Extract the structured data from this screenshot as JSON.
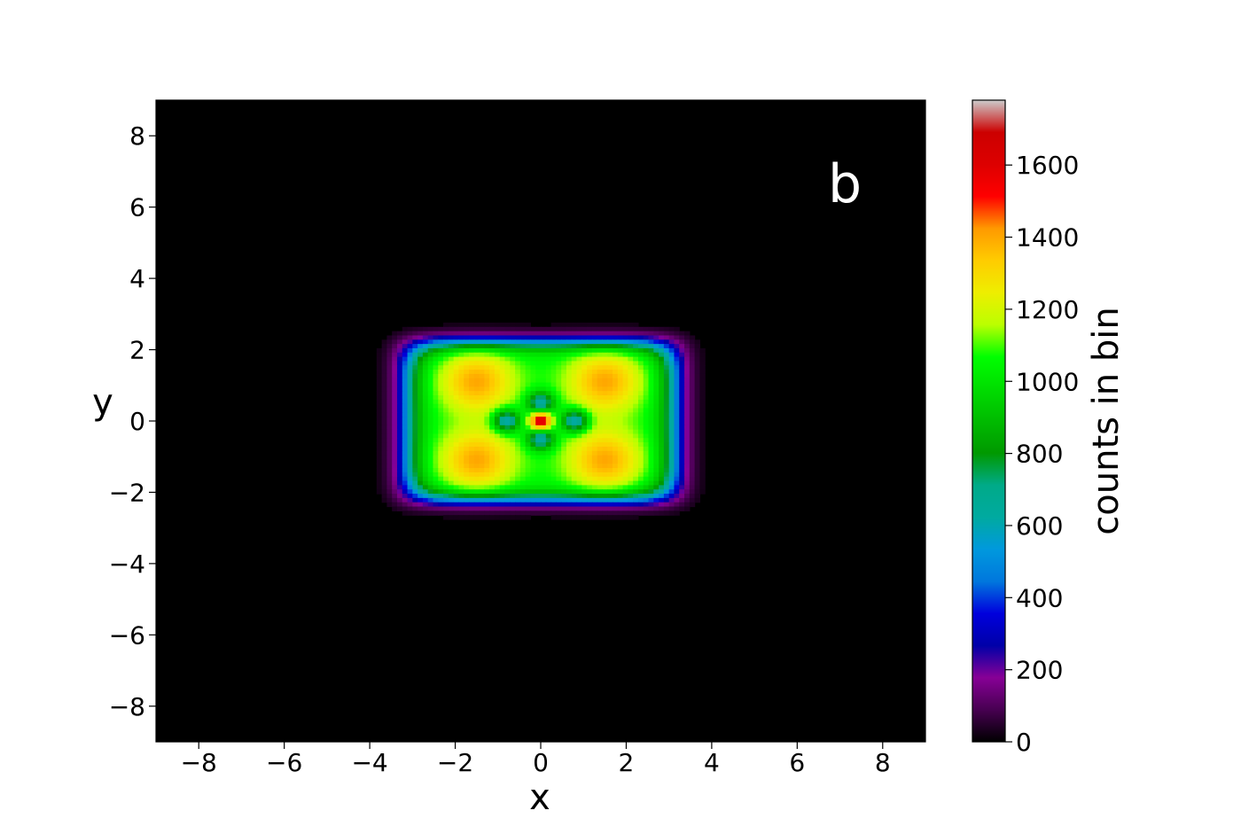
{
  "chart_data": {
    "type": "heatmap",
    "title": "",
    "panel_label": "b",
    "xlabel": "x",
    "ylabel": "y",
    "xlim": [
      -9,
      9
    ],
    "ylim": [
      -9,
      9
    ],
    "xticks": [
      -8,
      -6,
      -4,
      -2,
      0,
      2,
      4,
      6,
      8
    ],
    "yticks": [
      -8,
      -6,
      -4,
      -2,
      0,
      2,
      4,
      6,
      8
    ],
    "colorbar": {
      "label": "counts in bin",
      "range": [
        0,
        1780
      ],
      "ticks": [
        0,
        200,
        400,
        600,
        800,
        1000,
        1200,
        1400,
        1600
      ],
      "colormap": "nipy_spectral",
      "stops": [
        {
          "v": 0.0,
          "color": "#000000"
        },
        {
          "v": 0.05,
          "color": "#470051"
        },
        {
          "v": 0.1,
          "color": "#870096"
        },
        {
          "v": 0.15,
          "color": "#0000a8"
        },
        {
          "v": 0.2,
          "color": "#0000dd"
        },
        {
          "v": 0.25,
          "color": "#0077dd"
        },
        {
          "v": 0.3,
          "color": "#0099dd"
        },
        {
          "v": 0.35,
          "color": "#00aaa0"
        },
        {
          "v": 0.4,
          "color": "#00aa88"
        },
        {
          "v": 0.45,
          "color": "#009900"
        },
        {
          "v": 0.5,
          "color": "#00bb00"
        },
        {
          "v": 0.55,
          "color": "#00dd00"
        },
        {
          "v": 0.6,
          "color": "#00ff00"
        },
        {
          "v": 0.65,
          "color": "#bbff00"
        },
        {
          "v": 0.7,
          "color": "#eeee00"
        },
        {
          "v": 0.75,
          "color": "#ffcc00"
        },
        {
          "v": 0.8,
          "color": "#ff9900"
        },
        {
          "v": 0.85,
          "color": "#ff0000"
        },
        {
          "v": 0.9,
          "color": "#dd0000"
        },
        {
          "v": 0.95,
          "color": "#cc0000"
        },
        {
          "v": 1.0,
          "color": "#cccccc"
        }
      ]
    },
    "features": [
      {
        "name": "central-peak",
        "x": 0,
        "y": 0,
        "value": 1650
      },
      {
        "name": "corner-lobe",
        "x": -1.5,
        "y": 1.1,
        "value": 1400
      },
      {
        "name": "corner-lobe",
        "x": 1.5,
        "y": 1.1,
        "value": 1400
      },
      {
        "name": "corner-lobe",
        "x": -1.5,
        "y": -1.1,
        "value": 1400
      },
      {
        "name": "corner-lobe",
        "x": 1.5,
        "y": -1.1,
        "value": 1400
      },
      {
        "name": "inner-dip",
        "x": 0,
        "y": 0.5,
        "value": 600
      },
      {
        "name": "inner-dip",
        "x": 0,
        "y": -0.5,
        "value": 600
      },
      {
        "name": "inner-dip",
        "x": -0.8,
        "y": 0,
        "value": 600
      },
      {
        "name": "inner-dip",
        "x": 0.8,
        "y": 0,
        "value": 600
      },
      {
        "name": "plateau",
        "x": 0,
        "y": 0,
        "value": 1050,
        "half_width_x": 3.4,
        "half_width_y": 2.4
      }
    ]
  }
}
